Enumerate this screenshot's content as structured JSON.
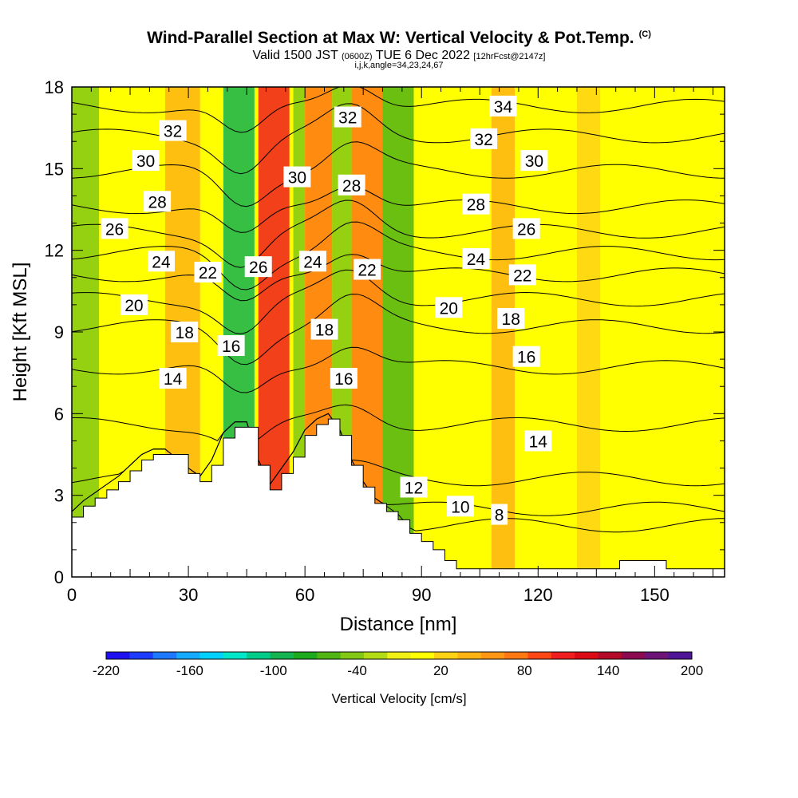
{
  "title": "Wind-Parallel Section at Max W: Vertical Velocity & Pot.Temp.",
  "title_mark": "(C)",
  "subtitle_main": "Valid 1500 JST",
  "subtitle_zulu": "(0600Z)",
  "subtitle_date": "TUE 6 Dec 2022",
  "subtitle_fcst": "[12hrFcst@2147z]",
  "subtitle2": "i,j,k,angle=34,23,24,67",
  "chart_data": {
    "type": "heatmap",
    "xlabel": "Distance [nm]",
    "ylabel": "Height [Kft MSL]",
    "xlim": [
      0,
      168
    ],
    "ylim": [
      0,
      18
    ],
    "x_ticks": [
      "0",
      "30",
      "60",
      "90",
      "120",
      "150"
    ],
    "y_ticks": [
      "0",
      "3",
      "6",
      "9",
      "12",
      "15",
      "18"
    ],
    "colorbar": {
      "title": "Vertical Velocity [cm/s]",
      "tick_labels": [
        "-220",
        "-160",
        "-100",
        "-40",
        "20",
        "80",
        "140",
        "200"
      ],
      "colors": [
        "#1e10f0",
        "#1e3cff",
        "#1e78ff",
        "#14aaff",
        "#00d2ff",
        "#00e6c8",
        "#00cc8a",
        "#14b450",
        "#1eaa1e",
        "#50b414",
        "#82c814",
        "#b4dc14",
        "#f0f014",
        "#ffff00",
        "#ffd214",
        "#ffb414",
        "#ff9614",
        "#ff7814",
        "#ff4614",
        "#f01e1e",
        "#dc0a14",
        "#b40a28",
        "#8c0a50",
        "#6e1478",
        "#501496"
      ]
    },
    "vertical_velocity_bands_cm_s": [
      {
        "x": [
          0,
          7
        ],
        "value": -40
      },
      {
        "x": [
          24,
          33
        ],
        "value": 40
      },
      {
        "x": [
          39,
          47
        ],
        "value": -100
      },
      {
        "x": [
          48,
          56
        ],
        "value": 100
      },
      {
        "x": [
          57,
          60
        ],
        "value": -40
      },
      {
        "x": [
          60,
          67
        ],
        "value": 80
      },
      {
        "x": [
          67,
          72
        ],
        "value": -40
      },
      {
        "x": [
          72,
          80
        ],
        "value": 80
      },
      {
        "x": [
          80,
          88
        ],
        "value": -60
      },
      {
        "x": [
          108,
          114
        ],
        "value": 40
      },
      {
        "x": [
          130,
          136
        ],
        "value": 30
      }
    ],
    "contour_levels": [
      8,
      10,
      12,
      14,
      16,
      18,
      20,
      22,
      24,
      26,
      28,
      30,
      32,
      34
    ],
    "contour_labels": [
      {
        "text": "32",
        "x": 26,
        "y": 16.4
      },
      {
        "text": "30",
        "x": 19,
        "y": 15.3
      },
      {
        "text": "28",
        "x": 22,
        "y": 13.8
      },
      {
        "text": "26",
        "x": 11,
        "y": 12.8
      },
      {
        "text": "24",
        "x": 23,
        "y": 11.6
      },
      {
        "text": "22",
        "x": 35,
        "y": 11.2
      },
      {
        "text": "20",
        "x": 16,
        "y": 10.0
      },
      {
        "text": "18",
        "x": 29,
        "y": 9.0
      },
      {
        "text": "16",
        "x": 41,
        "y": 8.5
      },
      {
        "text": "14",
        "x": 26,
        "y": 7.3
      },
      {
        "text": "26",
        "x": 48,
        "y": 11.4
      },
      {
        "text": "30",
        "x": 58,
        "y": 14.7
      },
      {
        "text": "24",
        "x": 62,
        "y": 11.6
      },
      {
        "text": "18",
        "x": 65,
        "y": 9.1
      },
      {
        "text": "16",
        "x": 70,
        "y": 7.3
      },
      {
        "text": "32",
        "x": 71,
        "y": 16.9
      },
      {
        "text": "28",
        "x": 72,
        "y": 14.4
      },
      {
        "text": "22",
        "x": 76,
        "y": 11.3
      },
      {
        "text": "34",
        "x": 111,
        "y": 17.3
      },
      {
        "text": "32",
        "x": 106,
        "y": 16.1
      },
      {
        "text": "30",
        "x": 119,
        "y": 15.3
      },
      {
        "text": "28",
        "x": 104,
        "y": 13.7
      },
      {
        "text": "26",
        "x": 117,
        "y": 12.8
      },
      {
        "text": "24",
        "x": 104,
        "y": 11.7
      },
      {
        "text": "22",
        "x": 116,
        "y": 11.1
      },
      {
        "text": "20",
        "x": 97,
        "y": 9.9
      },
      {
        "text": "18",
        "x": 113,
        "y": 9.5
      },
      {
        "text": "16",
        "x": 117,
        "y": 8.1
      },
      {
        "text": "14",
        "x": 120,
        "y": 5.0
      },
      {
        "text": "12",
        "x": 88,
        "y": 3.3
      },
      {
        "text": "10",
        "x": 100,
        "y": 2.6
      },
      {
        "text": "8",
        "x": 110,
        "y": 2.3
      }
    ],
    "terrain": {
      "x": [
        0,
        3,
        6,
        9,
        12,
        15,
        18,
        21,
        24,
        30,
        33,
        36,
        39,
        42,
        45,
        48,
        51,
        54,
        57,
        60,
        63,
        66,
        69,
        72,
        75,
        78,
        81,
        84,
        87,
        90,
        93,
        96,
        99,
        102,
        105,
        108,
        111,
        114,
        117,
        120,
        123,
        126,
        129,
        132,
        135,
        138,
        141,
        144,
        147,
        150,
        153,
        156,
        159,
        162,
        165,
        168
      ],
      "height_kft": [
        2.2,
        2.6,
        2.9,
        3.2,
        3.5,
        3.9,
        4.3,
        4.5,
        4.5,
        3.8,
        3.5,
        4.1,
        5.1,
        5.5,
        5.5,
        4.1,
        3.2,
        3.8,
        4.4,
        5.2,
        5.6,
        5.8,
        5.2,
        4.1,
        3.3,
        2.7,
        2.4,
        2.1,
        1.6,
        1.3,
        1.0,
        0.6,
        0.3,
        0.3,
        0.3,
        0.3,
        0.3,
        0.3,
        0.3,
        0.3,
        0.3,
        0.3,
        0.3,
        0.3,
        0.3,
        0.3,
        0.6,
        0.6,
        0.6,
        0.6,
        0.3,
        0.3,
        0.3,
        0.3,
        0.3,
        0.3
      ]
    }
  }
}
